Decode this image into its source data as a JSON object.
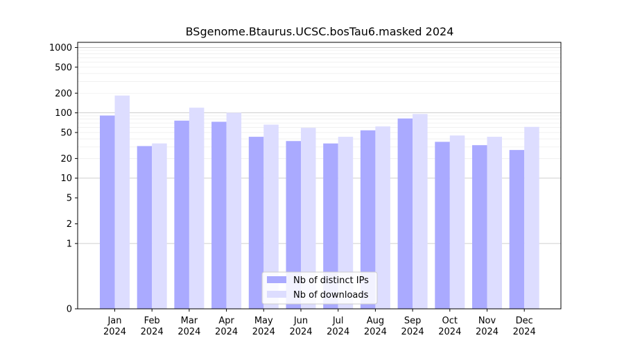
{
  "chart_data": {
    "type": "bar",
    "title": "BSgenome.Btaurus.UCSC.bosTau6.masked 2024",
    "xlabel": "",
    "ylabel": "",
    "y_scale": "symlog",
    "ylim": [
      0,
      1200
    ],
    "y_ticks": [
      0,
      1,
      2,
      5,
      10,
      20,
      50,
      100,
      200,
      500,
      1000
    ],
    "categories": [
      "Jan\n2024",
      "Feb\n2024",
      "Mar\n2024",
      "Apr\n2024",
      "May\n2024",
      "Jun\n2024",
      "Jul\n2024",
      "Aug\n2024",
      "Sep\n2024",
      "Oct\n2024",
      "Nov\n2024",
      "Dec\n2024"
    ],
    "series": [
      {
        "name": "Nb of distinct IPs",
        "color": "#aaaaff",
        "values": [
          91,
          31,
          76,
          73,
          43,
          37,
          34,
          54,
          82,
          36,
          32,
          27
        ]
      },
      {
        "name": "Nb of downloads",
        "color": "#ddddff",
        "values": [
          184,
          34,
          120,
          100,
          66,
          59,
          43,
          62,
          96,
          45,
          43,
          61
        ]
      }
    ],
    "grid": true,
    "legend_position": "lower center"
  }
}
